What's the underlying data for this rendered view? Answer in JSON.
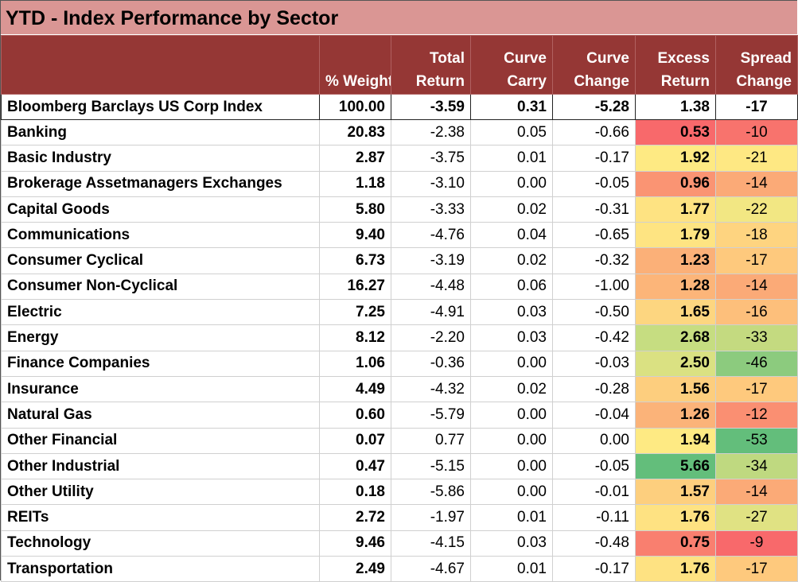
{
  "title": "YTD - Index Performance by Sector",
  "table": {
    "columns": [
      [
        "% Weight"
      ],
      [
        "Total",
        "Return"
      ],
      [
        "Curve",
        "Carry"
      ],
      [
        "Curve",
        "Change"
      ],
      [
        "Excess",
        "Return"
      ],
      [
        "Spread",
        "Change"
      ]
    ],
    "total": [
      "Bloomberg Barclays US Corp Index",
      "100.00",
      "-3.59",
      "0.31",
      "-5.28",
      "1.38",
      "-17"
    ],
    "rows": [
      [
        "Banking",
        "20.83",
        "-2.38",
        "0.05",
        "-0.66",
        "0.53",
        "-10"
      ],
      [
        "Basic Industry",
        "2.87",
        "-3.75",
        "0.01",
        "-0.17",
        "1.92",
        "-21"
      ],
      [
        "Brokerage Assetmanagers Exchanges",
        "1.18",
        "-3.10",
        "0.00",
        "-0.05",
        "0.96",
        "-14"
      ],
      [
        "Capital Goods",
        "5.80",
        "-3.33",
        "0.02",
        "-0.31",
        "1.77",
        "-22"
      ],
      [
        "Communications",
        "9.40",
        "-4.76",
        "0.04",
        "-0.65",
        "1.79",
        "-18"
      ],
      [
        "Consumer Cyclical",
        "6.73",
        "-3.19",
        "0.02",
        "-0.32",
        "1.23",
        "-17"
      ],
      [
        "Consumer Non-Cyclical",
        "16.27",
        "-4.48",
        "0.06",
        "-1.00",
        "1.28",
        "-14"
      ],
      [
        "Electric",
        "7.25",
        "-4.91",
        "0.03",
        "-0.50",
        "1.65",
        "-16"
      ],
      [
        "Energy",
        "8.12",
        "-2.20",
        "0.03",
        "-0.42",
        "2.68",
        "-33"
      ],
      [
        "Finance Companies",
        "1.06",
        "-0.36",
        "0.00",
        "-0.03",
        "2.50",
        "-46"
      ],
      [
        "Insurance",
        "4.49",
        "-4.32",
        "0.02",
        "-0.28",
        "1.56",
        "-17"
      ],
      [
        "Natural Gas",
        "0.60",
        "-5.79",
        "0.00",
        "-0.04",
        "1.26",
        "-12"
      ],
      [
        "Other Financial",
        "0.07",
        "0.77",
        "0.00",
        "0.00",
        "1.94",
        "-53"
      ],
      [
        "Other Industrial",
        "0.47",
        "-5.15",
        "0.00",
        "-0.05",
        "5.66",
        "-34"
      ],
      [
        "Other Utility",
        "0.18",
        "-5.86",
        "0.00",
        "-0.01",
        "1.57",
        "-14"
      ],
      [
        "REITs",
        "2.72",
        "-1.97",
        "0.01",
        "-0.11",
        "1.76",
        "-27"
      ],
      [
        "Technology",
        "9.46",
        "-4.15",
        "0.03",
        "-0.48",
        "0.75",
        "-9"
      ],
      [
        "Transportation",
        "2.49",
        "-4.67",
        "0.01",
        "-0.17",
        "1.76",
        "-17"
      ]
    ],
    "excess_colors": [
      "#f8696b",
      "#feea83",
      "#fa9473",
      "#fee382",
      "#fee482",
      "#fbb078",
      "#fcb579",
      "#fdd680",
      "#c6dd81",
      "#dae182",
      "#fdce7e",
      "#fbb379",
      "#feea83",
      "#63be7b",
      "#fdcf7e",
      "#fee282",
      "#f97f6f",
      "#fee282"
    ],
    "spread_colors": [
      "#f8736d",
      "#fee883",
      "#fbaa77",
      "#f2e783",
      "#fed480",
      "#fec97d",
      "#fbaa77",
      "#fdbf7b",
      "#c4da80",
      "#8ccb7e",
      "#fec97d",
      "#fa8f72",
      "#63be7b",
      "#bfd980",
      "#fbaa77",
      "#e0e283",
      "#f8696b",
      "#fec97d"
    ]
  }
}
